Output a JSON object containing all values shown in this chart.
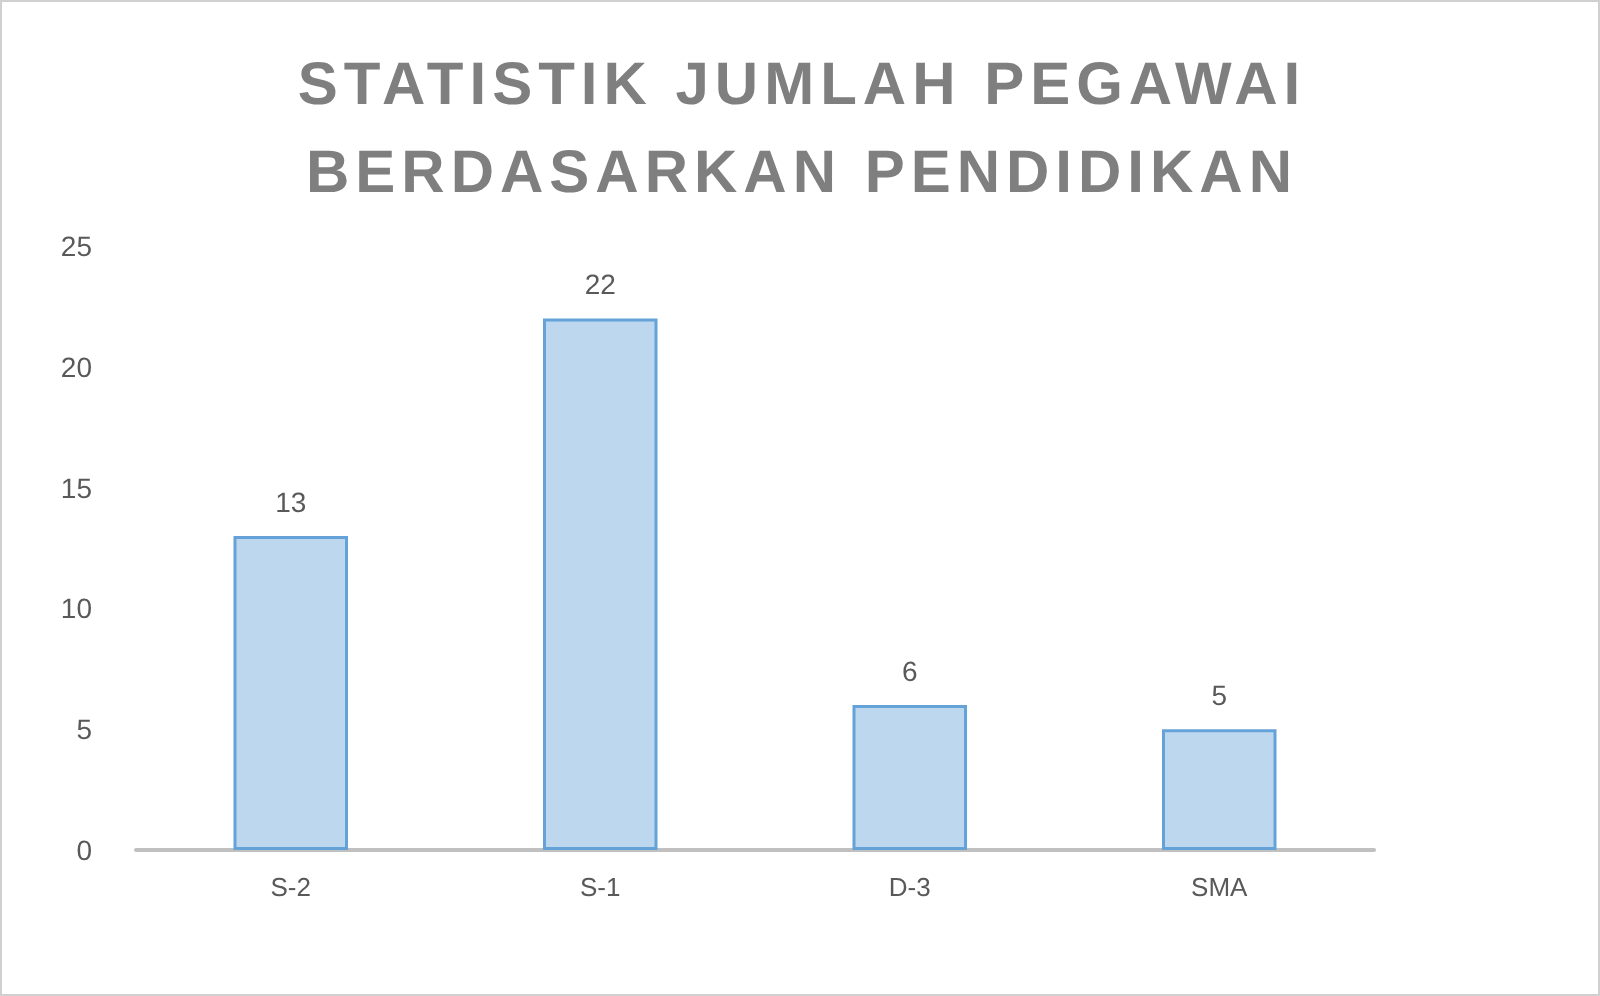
{
  "chart_data": {
    "type": "bar",
    "title": "STATISTIK JUMLAH PEGAWAI BERDASARKAN PENDIDIKAN",
    "categories": [
      "S-2",
      "S-1",
      "D-3",
      "SMA"
    ],
    "values": [
      13,
      22,
      6,
      5
    ],
    "color": "#bdd7ee",
    "ylim": [
      0,
      25
    ],
    "yticks": [
      0,
      5,
      10,
      15,
      20,
      25
    ],
    "grid": false,
    "data_labels": true
  }
}
